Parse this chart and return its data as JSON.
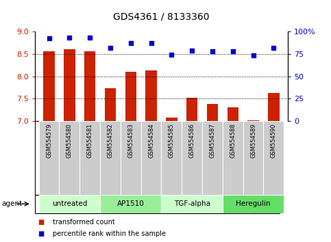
{
  "title": "GDS4361 / 8133360",
  "samples": [
    "GSM554579",
    "GSM554580",
    "GSM554581",
    "GSM554582",
    "GSM554583",
    "GSM554584",
    "GSM554585",
    "GSM554586",
    "GSM554587",
    "GSM554588",
    "GSM554589",
    "GSM554590"
  ],
  "bar_values": [
    8.55,
    8.6,
    8.55,
    7.73,
    8.1,
    8.13,
    7.08,
    7.52,
    7.38,
    7.3,
    7.02,
    7.63
  ],
  "dot_values": [
    92,
    93,
    93,
    82,
    87,
    87,
    74,
    79,
    78,
    78,
    73,
    82
  ],
  "bar_color": "#cc2200",
  "dot_color": "#0000cc",
  "ylim_left": [
    7.0,
    9.0
  ],
  "ylim_right": [
    0,
    100
  ],
  "yticks_left": [
    7.0,
    7.5,
    8.0,
    8.5,
    9.0
  ],
  "yticks_right": [
    0,
    25,
    50,
    75,
    100
  ],
  "ytick_labels_right": [
    "0",
    "25",
    "50",
    "75",
    "100%"
  ],
  "hlines": [
    7.5,
    8.0,
    8.5
  ],
  "agents": [
    {
      "label": "untreated",
      "start": 0,
      "end": 3,
      "color": "#ccffcc"
    },
    {
      "label": "AP1510",
      "start": 3,
      "end": 6,
      "color": "#99ee99"
    },
    {
      "label": "TGF-alpha",
      "start": 6,
      "end": 9,
      "color": "#ccffcc"
    },
    {
      "label": "Heregulin",
      "start": 9,
      "end": 12,
      "color": "#66dd66"
    }
  ],
  "legend_bar_label": "transformed count",
  "legend_dot_label": "percentile rank within the sample",
  "agent_label": "agent",
  "tick_label_area_color": "#cccccc",
  "agent_area_color_border": "#888888"
}
